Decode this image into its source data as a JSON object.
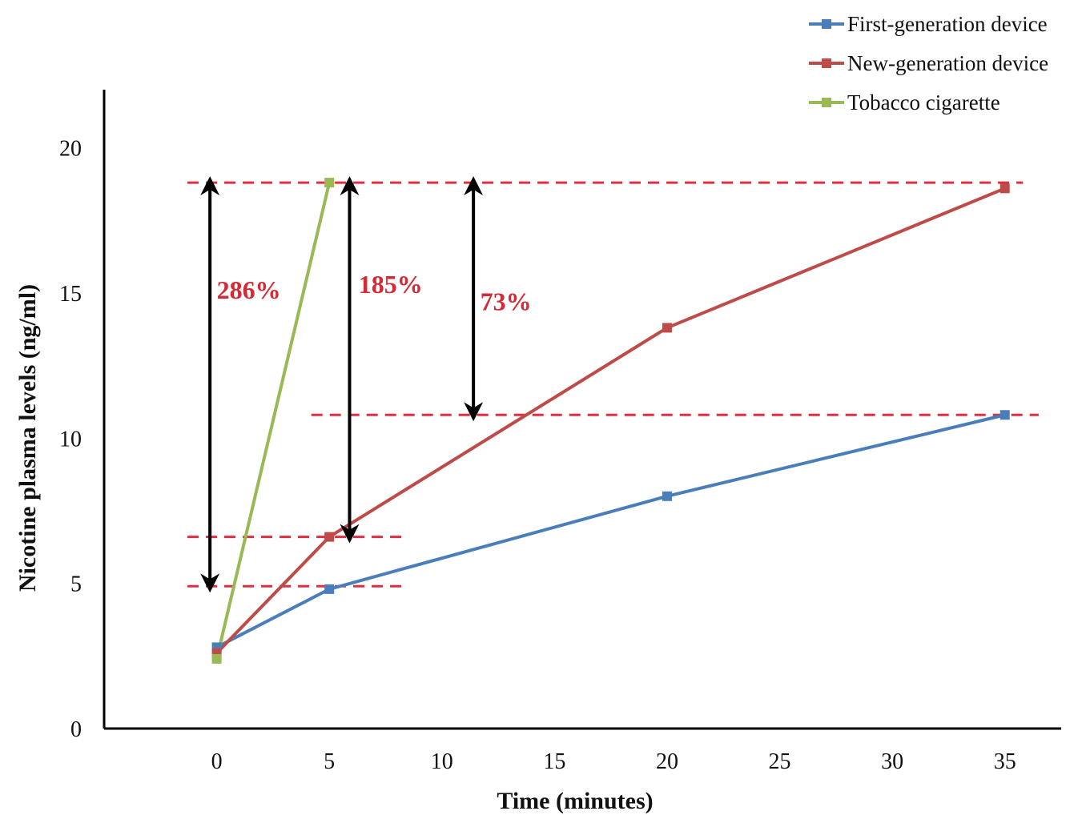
{
  "chart_data": {
    "type": "line",
    "title": "",
    "xlabel": "Time (minutes)",
    "ylabel": "Nicotine plasma levels (ng/ml)",
    "xlim": [
      -5,
      37.5
    ],
    "ylim": [
      0,
      22
    ],
    "x_ticks": [
      0,
      5,
      10,
      15,
      20,
      25,
      30,
      35
    ],
    "y_ticks": [
      0,
      5,
      10,
      15,
      20
    ],
    "x_tick_labels": [
      "0",
      "5",
      "10",
      "15",
      "20",
      "25",
      "30",
      "35"
    ],
    "y_tick_labels": [
      "0",
      "5",
      "10",
      "15",
      "20"
    ],
    "grid": false,
    "legend_position": "top-right",
    "series": [
      {
        "name": "First-generation device",
        "color": "#4a7ebb",
        "x": [
          0,
          5,
          20,
          35
        ],
        "y": [
          2.8,
          4.8,
          8.0,
          10.8
        ]
      },
      {
        "name": "New-generation device",
        "color": "#be4b48",
        "x": [
          0,
          5,
          20,
          35
        ],
        "y": [
          2.6,
          6.6,
          13.8,
          18.6
        ]
      },
      {
        "name": "Tobacco cigarette",
        "color": "#98b954",
        "x": [
          0,
          5
        ],
        "y": [
          2.4,
          18.8
        ]
      }
    ],
    "reference_lines": [
      {
        "y": 18.8,
        "x_from": -1.3,
        "x_to": 35.8
      },
      {
        "y": 10.8,
        "x_from": 4.2,
        "x_to": 36.5
      },
      {
        "y": 6.6,
        "x_from": -1.3,
        "x_to": 8.5
      },
      {
        "y": 4.9,
        "x_from": -1.3,
        "x_to": 8.5
      }
    ],
    "annotations": [
      {
        "label": "286%",
        "arrow_x": -0.3,
        "y_from": 18.8,
        "y_to": 4.9,
        "label_x": 0.0,
        "label_y": 14.8
      },
      {
        "label": "185%",
        "arrow_x": 5.9,
        "y_from": 18.8,
        "y_to": 6.6,
        "label_x": 6.3,
        "label_y": 15.0
      },
      {
        "label": "73%",
        "arrow_x": 11.4,
        "y_from": 18.8,
        "y_to": 10.8,
        "label_x": 11.7,
        "label_y": 14.4
      }
    ],
    "annotation_color": "#d42a35",
    "reference_line_color": "#e03040"
  }
}
